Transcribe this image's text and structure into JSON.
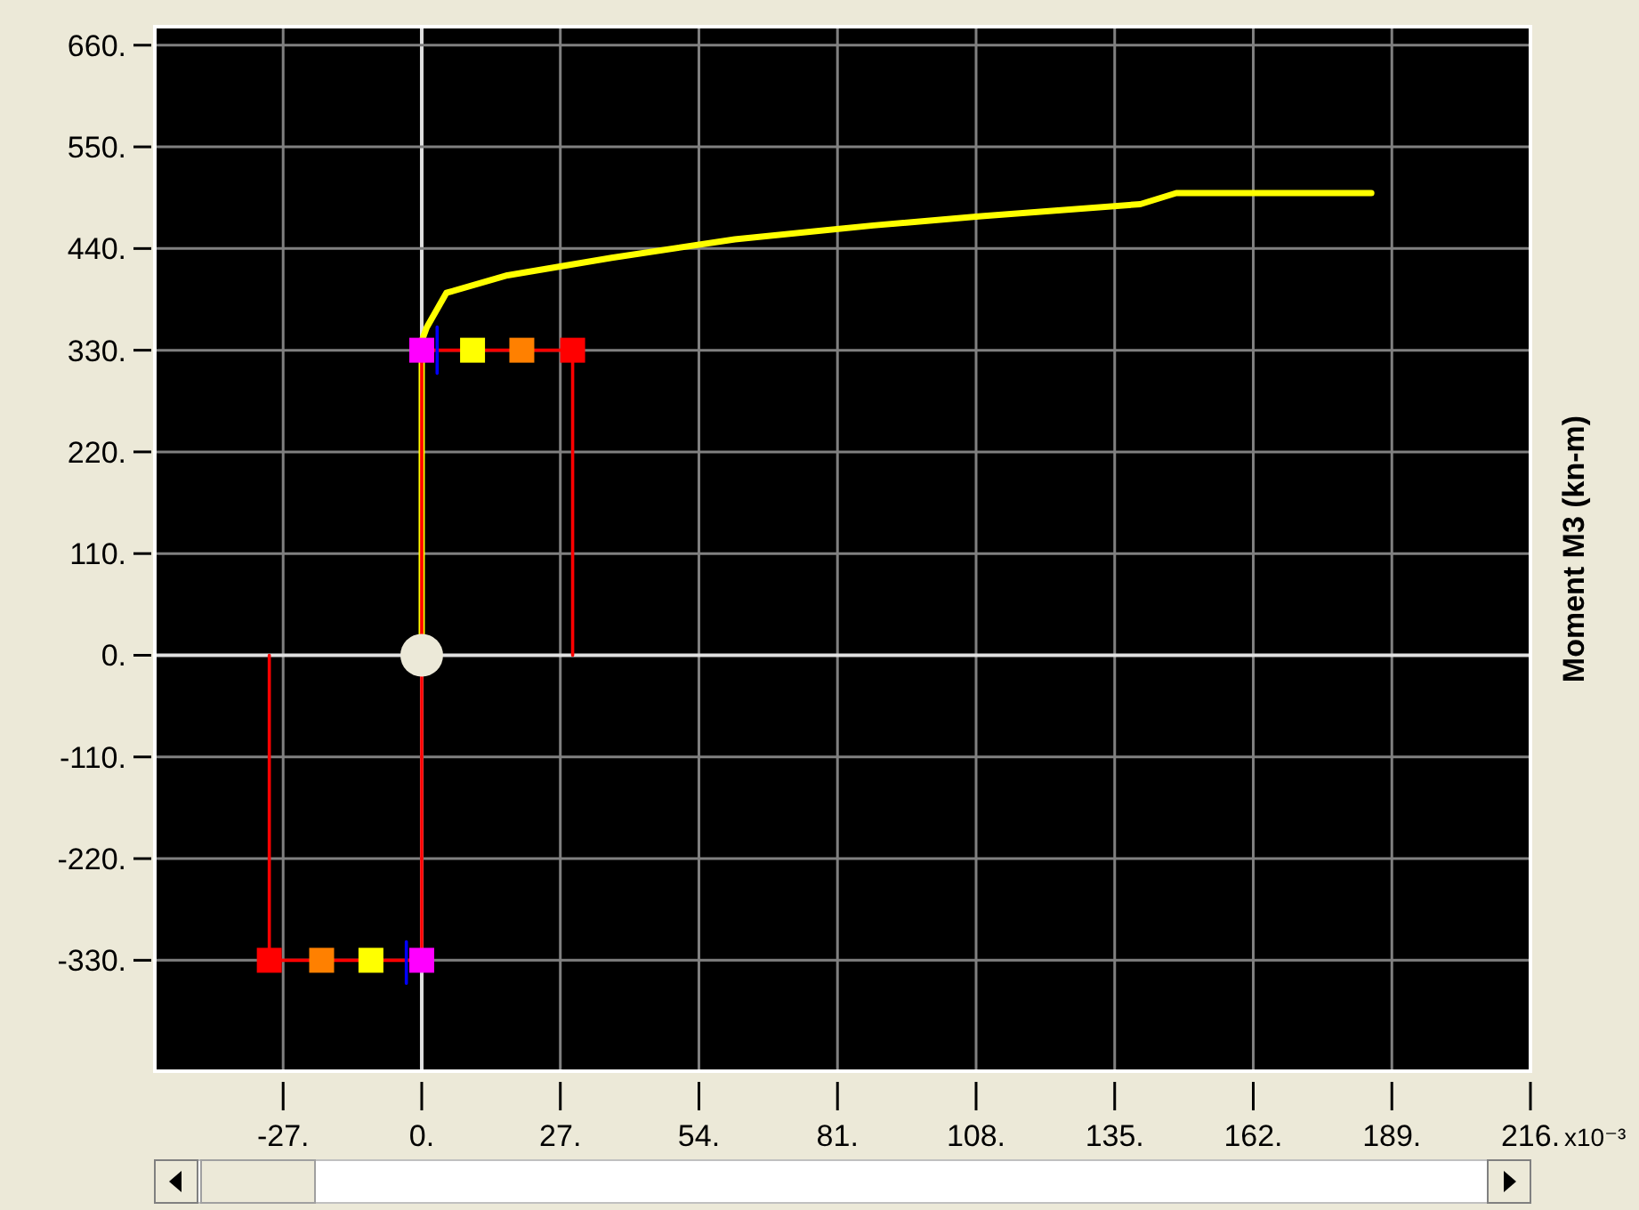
{
  "chart_data": {
    "type": "line",
    "ylabel": "Moment M3  (kn-m)",
    "annotations": [
      "x10⁻³"
    ],
    "xlim": [
      -52,
      216
    ],
    "ylim": [
      -450,
      680
    ],
    "xticks": [
      {
        "value": -27,
        "label": "-27."
      },
      {
        "value": 0,
        "label": "0."
      },
      {
        "value": 27,
        "label": "27."
      },
      {
        "value": 54,
        "label": "54."
      },
      {
        "value": 81,
        "label": "81."
      },
      {
        "value": 108,
        "label": "108."
      },
      {
        "value": 135,
        "label": "135."
      },
      {
        "value": 162,
        "label": "162."
      },
      {
        "value": 189,
        "label": "189."
      },
      {
        "value": 216,
        "label": "216."
      }
    ],
    "yticks": [
      {
        "value": -330,
        "label": "-330."
      },
      {
        "value": -220,
        "label": "-220."
      },
      {
        "value": -110,
        "label": "-110."
      },
      {
        "value": 0,
        "label": "0."
      },
      {
        "value": 110,
        "label": "110."
      },
      {
        "value": 220,
        "label": "220."
      },
      {
        "value": 330,
        "label": "330."
      },
      {
        "value": 440,
        "label": "440."
      },
      {
        "value": 550,
        "label": "550."
      },
      {
        "value": 660,
        "label": "660."
      }
    ],
    "grid": true,
    "series": [
      {
        "color": "#ffff00",
        "x": [
          0,
          0,
          1,
          4.8,
          16.7,
          37,
          61,
          88,
          109,
          140,
          147,
          185
        ],
        "values": [
          0,
          340,
          355,
          392,
          411,
          430,
          450,
          465,
          475,
          488,
          500,
          500
        ]
      },
      {
        "color": "#ff0000",
        "x": [
          -29.7,
          -29.7,
          0,
          0,
          29.4,
          29.4
        ],
        "values": [
          0,
          -330,
          -330,
          330,
          330,
          0
        ]
      },
      {
        "color": "#0000ff",
        "x": [
          3,
          3,
          null,
          -3,
          -3
        ],
        "values": [
          305,
          355,
          null,
          -310,
          -355
        ]
      },
      {
        "type": "scatter",
        "marker": "square",
        "x": [
          -29.7,
          -19.5,
          -9.9,
          0,
          0,
          9.9,
          19.5,
          29.4
        ],
        "values": [
          -330,
          -330,
          -330,
          -330,
          330,
          330,
          330,
          330
        ],
        "colors": [
          "#ff0000",
          "#ff8000",
          "#ffff00",
          "#ff00ff",
          "#ff00ff",
          "#ffff00",
          "#ff8000",
          "#ff0000"
        ]
      },
      {
        "type": "scatter",
        "marker": "circle",
        "color": "#ece9d8",
        "x": [
          0
        ],
        "values": [
          0
        ]
      }
    ]
  }
}
